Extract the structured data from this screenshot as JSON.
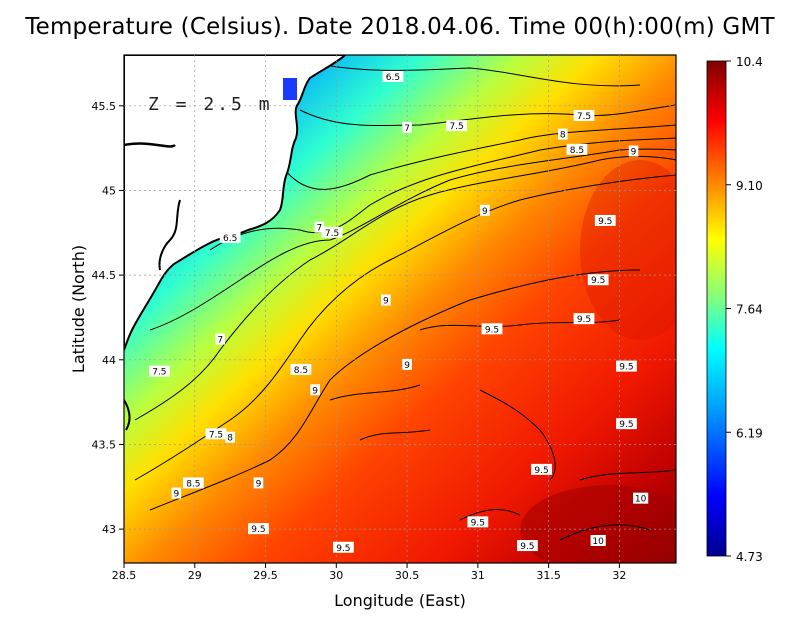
{
  "title": "Temperature (Celsius). Date 2018.04.06. Time 00(h):00(m)  GMT",
  "depth_label": "Z = 2.5 m",
  "chart_data": {
    "type": "heatmap",
    "title": "Temperature (Celsius). Date 2018.04.06. Time 00(h):00(m)  GMT",
    "xlabel": "Longitude (East)",
    "ylabel": "Latitude (North)",
    "xlim": [
      28.5,
      32.4
    ],
    "ylim": [
      42.8,
      45.8
    ],
    "x_ticks": [
      "28.5",
      "29",
      "29.5",
      "30",
      "30.5",
      "31",
      "31.5",
      "32"
    ],
    "y_ticks": [
      "43",
      "43.5",
      "44",
      "44.5",
      "45",
      "45.5"
    ],
    "grid": true,
    "colorbar": {
      "min": 4.73,
      "max": 10.4,
      "ticks": [
        "10.4",
        "9.10",
        "7.64",
        "6.19",
        "4.73"
      ],
      "colormap": [
        "#00008f",
        "#0000ff",
        "#00a0ff",
        "#00ffff",
        "#80ff80",
        "#ffff00",
        "#ff8000",
        "#ff0000",
        "#800000"
      ]
    },
    "contour_labels": [
      {
        "lon": 30.4,
        "lat": 45.67,
        "text": "6.5"
      },
      {
        "lon": 31.75,
        "lat": 45.44,
        "text": "7.5"
      },
      {
        "lon": 30.5,
        "lat": 45.37,
        "text": "7"
      },
      {
        "lon": 30.85,
        "lat": 45.38,
        "text": "7.5"
      },
      {
        "lon": 31.6,
        "lat": 45.33,
        "text": "8"
      },
      {
        "lon": 31.7,
        "lat": 45.24,
        "text": "8.5"
      },
      {
        "lon": 32.1,
        "lat": 45.23,
        "text": "9"
      },
      {
        "lon": 31.05,
        "lat": 44.88,
        "text": "9"
      },
      {
        "lon": 31.9,
        "lat": 44.82,
        "text": "9.5"
      },
      {
        "lon": 29.25,
        "lat": 44.72,
        "text": "6.5"
      },
      {
        "lon": 29.88,
        "lat": 44.78,
        "text": "7"
      },
      {
        "lon": 29.97,
        "lat": 44.75,
        "text": "7.5"
      },
      {
        "lon": 31.85,
        "lat": 44.47,
        "text": "9.5"
      },
      {
        "lon": 30.35,
        "lat": 44.35,
        "text": "9"
      },
      {
        "lon": 31.1,
        "lat": 44.18,
        "text": "9.5"
      },
      {
        "lon": 31.75,
        "lat": 44.24,
        "text": "9.5"
      },
      {
        "lon": 29.18,
        "lat": 44.12,
        "text": "7"
      },
      {
        "lon": 30.5,
        "lat": 43.97,
        "text": "9"
      },
      {
        "lon": 28.75,
        "lat": 43.93,
        "text": "7.5"
      },
      {
        "lon": 29.75,
        "lat": 43.94,
        "text": "8.5"
      },
      {
        "lon": 29.85,
        "lat": 43.82,
        "text": "9"
      },
      {
        "lon": 32.05,
        "lat": 43.96,
        "text": "9.5"
      },
      {
        "lon": 32.05,
        "lat": 43.62,
        "text": "9.5"
      },
      {
        "lon": 29.15,
        "lat": 43.56,
        "text": "7.5"
      },
      {
        "lon": 29.25,
        "lat": 43.54,
        "text": "8"
      },
      {
        "lon": 31.45,
        "lat": 43.35,
        "text": "9.5"
      },
      {
        "lon": 28.99,
        "lat": 43.27,
        "text": "8.5"
      },
      {
        "lon": 29.45,
        "lat": 43.27,
        "text": "9"
      },
      {
        "lon": 28.87,
        "lat": 43.21,
        "text": "9"
      },
      {
        "lon": 32.15,
        "lat": 43.18,
        "text": "10"
      },
      {
        "lon": 31.0,
        "lat": 43.04,
        "text": "9.5"
      },
      {
        "lon": 29.45,
        "lat": 43.0,
        "text": "9.5"
      },
      {
        "lon": 31.85,
        "lat": 42.93,
        "text": "10"
      },
      {
        "lon": 31.35,
        "lat": 42.9,
        "text": "9.5"
      },
      {
        "lon": 30.05,
        "lat": 42.89,
        "text": "9.5"
      }
    ]
  }
}
